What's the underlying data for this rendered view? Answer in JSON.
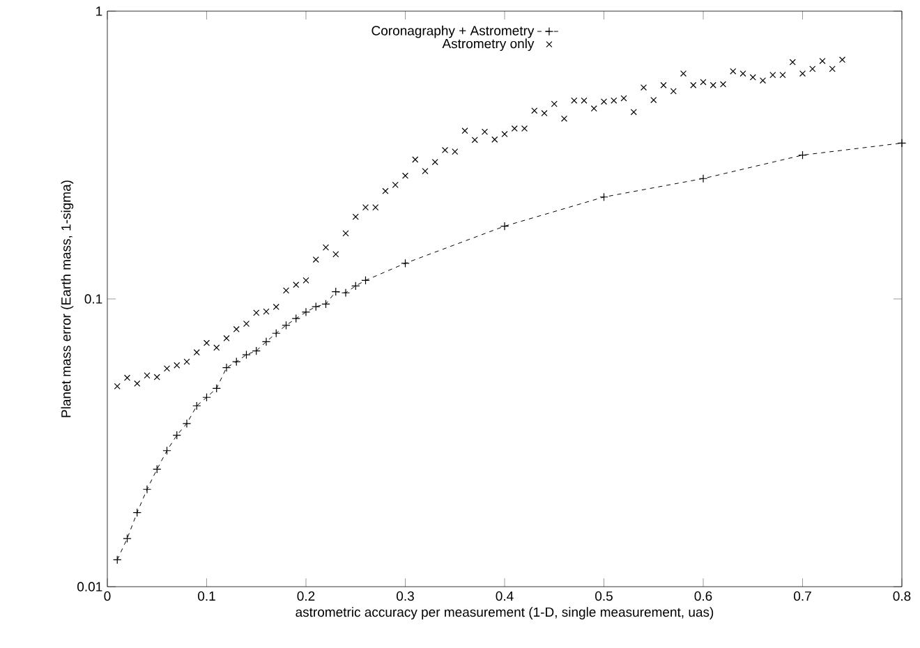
{
  "chart_data": {
    "type": "scatter",
    "xlabel": "astrometric accuracy per measurement (1-D, single measurement, uas)",
    "ylabel": "Planet mass error (Earth mass, 1-sigma)",
    "log": "y",
    "xlim": [
      0,
      0.8
    ],
    "ylim": [
      0.01,
      1
    ],
    "xticks": [
      0,
      0.1,
      0.2,
      0.3,
      0.4,
      0.5,
      0.6,
      0.7,
      0.8
    ],
    "yticks": [
      0.01,
      0.1,
      1
    ],
    "legend": "top",
    "series": [
      {
        "name": "Coronagraphy + Astrometry",
        "type": "line",
        "marker": "plus",
        "line_style": "dashed",
        "color": "#000000",
        "x": [
          0.01,
          0.02,
          0.03,
          0.04,
          0.05,
          0.06,
          0.07,
          0.08,
          0.09,
          0.1,
          0.11,
          0.12,
          0.13,
          0.14,
          0.15,
          0.16,
          0.17,
          0.18,
          0.19,
          0.2,
          0.21,
          0.22,
          0.23,
          0.24,
          0.25,
          0.26,
          0.3,
          0.4,
          0.5,
          0.6,
          0.7,
          0.8
        ],
        "values": [
          0.0124,
          0.0147,
          0.0181,
          0.0218,
          0.0256,
          0.0297,
          0.0336,
          0.0369,
          0.0425,
          0.0455,
          0.0489,
          0.0577,
          0.0605,
          0.064,
          0.066,
          0.071,
          0.076,
          0.081,
          0.0855,
          0.09,
          0.094,
          0.096,
          0.106,
          0.105,
          0.111,
          0.116,
          0.133,
          0.179,
          0.226,
          0.262,
          0.316,
          0.348
        ]
      },
      {
        "name": "Astrometry only",
        "marker": "cross",
        "color": "#000000",
        "x": [
          0.01,
          0.02,
          0.03,
          0.04,
          0.05,
          0.06,
          0.07,
          0.08,
          0.09,
          0.1,
          0.11,
          0.12,
          0.13,
          0.14,
          0.15,
          0.16,
          0.17,
          0.18,
          0.19,
          0.2,
          0.21,
          0.22,
          0.23,
          0.24,
          0.25,
          0.26,
          0.27,
          0.28,
          0.29,
          0.3,
          0.31,
          0.32,
          0.33,
          0.34,
          0.35,
          0.36,
          0.37,
          0.38,
          0.39,
          0.4,
          0.41,
          0.42,
          0.43,
          0.44,
          0.45,
          0.46,
          0.47,
          0.48,
          0.49,
          0.5,
          0.51,
          0.52,
          0.53,
          0.54,
          0.55,
          0.56,
          0.57,
          0.58,
          0.59,
          0.6,
          0.61,
          0.62,
          0.63,
          0.64,
          0.65,
          0.66,
          0.67,
          0.68,
          0.69,
          0.7,
          0.71,
          0.72,
          0.73,
          0.74
        ],
        "values": [
          0.0497,
          0.0532,
          0.0508,
          0.0542,
          0.0535,
          0.0573,
          0.0588,
          0.0605,
          0.0652,
          0.0703,
          0.0677,
          0.073,
          0.0785,
          0.082,
          0.0895,
          0.0904,
          0.0938,
          0.107,
          0.112,
          0.116,
          0.137,
          0.151,
          0.143,
          0.169,
          0.193,
          0.208,
          0.208,
          0.237,
          0.249,
          0.268,
          0.305,
          0.278,
          0.299,
          0.329,
          0.325,
          0.384,
          0.357,
          0.381,
          0.358,
          0.374,
          0.391,
          0.391,
          0.451,
          0.442,
          0.476,
          0.423,
          0.489,
          0.489,
          0.459,
          0.485,
          0.489,
          0.498,
          0.446,
          0.543,
          0.491,
          0.553,
          0.527,
          0.607,
          0.553,
          0.567,
          0.553,
          0.557,
          0.618,
          0.607,
          0.589,
          0.574,
          0.6,
          0.6,
          0.665,
          0.607,
          0.63,
          0.671,
          0.63,
          0.678
        ]
      }
    ]
  }
}
